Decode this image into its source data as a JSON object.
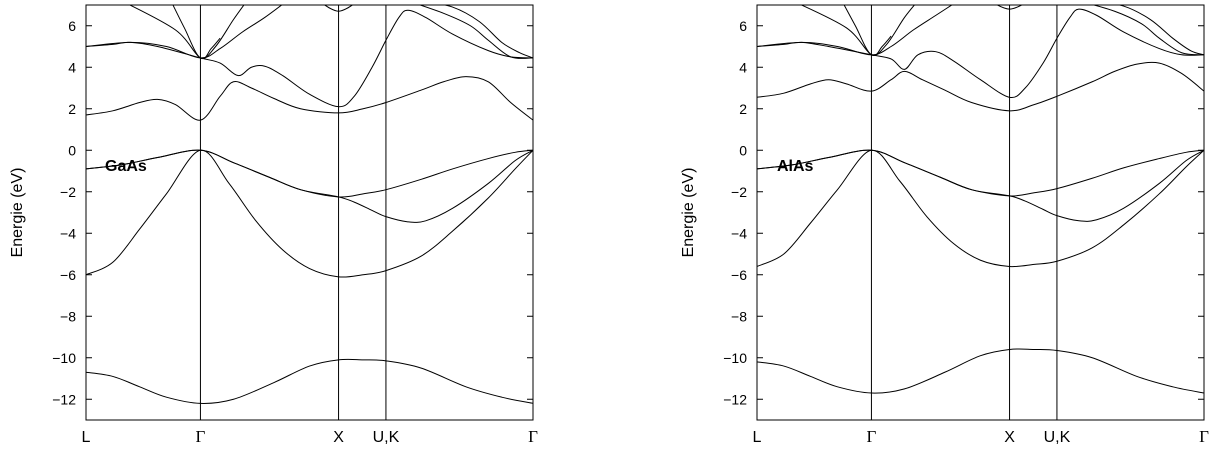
{
  "chart_data": [
    {
      "type": "line",
      "material_label": "GaAs",
      "ylabel": "Energie (eV)",
      "ylim": [
        -13,
        7
      ],
      "yticks": [
        -12,
        -10,
        -8,
        -6,
        -4,
        -2,
        0,
        2,
        4,
        6
      ],
      "xlim": [
        0,
        1
      ],
      "k_points": [
        {
          "label": "L",
          "x": 0
        },
        {
          "label": "Γ",
          "x": 0.256
        },
        {
          "label": "X",
          "x": 0.565
        },
        {
          "label": "U,K",
          "x": 0.671
        },
        {
          "label": "Γ",
          "x": 1
        }
      ],
      "bands": [
        [
          [
            0,
            -10.7
          ],
          [
            0.06,
            -10.9
          ],
          [
            0.12,
            -11.4
          ],
          [
            0.18,
            -11.9
          ],
          [
            0.256,
            -12.2
          ],
          [
            0.33,
            -12.0
          ],
          [
            0.42,
            -11.2
          ],
          [
            0.5,
            -10.4
          ],
          [
            0.565,
            -10.1
          ],
          [
            0.62,
            -10.1
          ],
          [
            0.671,
            -10.15
          ],
          [
            0.75,
            -10.5
          ],
          [
            0.85,
            -11.4
          ],
          [
            0.93,
            -11.9
          ],
          [
            1,
            -12.2
          ]
        ],
        [
          [
            0,
            -6.0
          ],
          [
            0.06,
            -5.4
          ],
          [
            0.12,
            -3.8
          ],
          [
            0.18,
            -2.1
          ],
          [
            0.256,
            0
          ],
          [
            0.32,
            -1.6
          ],
          [
            0.38,
            -3.4
          ],
          [
            0.44,
            -4.8
          ],
          [
            0.5,
            -5.7
          ],
          [
            0.565,
            -6.1
          ],
          [
            0.62,
            -6.0
          ],
          [
            0.671,
            -5.8
          ],
          [
            0.75,
            -5.1
          ],
          [
            0.82,
            -3.9
          ],
          [
            0.9,
            -2.3
          ],
          [
            0.96,
            -0.9
          ],
          [
            1,
            0
          ]
        ],
        [
          [
            0,
            -0.9
          ],
          [
            0.08,
            -0.7
          ],
          [
            0.16,
            -0.35
          ],
          [
            0.256,
            0
          ],
          [
            0.33,
            -0.6
          ],
          [
            0.41,
            -1.3
          ],
          [
            0.48,
            -1.9
          ],
          [
            0.565,
            -2.25
          ],
          [
            0.6,
            -2.5
          ],
          [
            0.64,
            -2.9
          ],
          [
            0.671,
            -3.2
          ],
          [
            0.72,
            -3.45
          ],
          [
            0.76,
            -3.4
          ],
          [
            0.82,
            -2.8
          ],
          [
            0.9,
            -1.6
          ],
          [
            0.96,
            -0.5
          ],
          [
            1,
            0
          ]
        ],
        [
          [
            0,
            -0.9
          ],
          [
            0.08,
            -0.7
          ],
          [
            0.16,
            -0.35
          ],
          [
            0.256,
            0
          ],
          [
            0.33,
            -0.6
          ],
          [
            0.41,
            -1.3
          ],
          [
            0.48,
            -1.9
          ],
          [
            0.565,
            -2.25
          ],
          [
            0.62,
            -2.1
          ],
          [
            0.671,
            -1.9
          ],
          [
            0.75,
            -1.4
          ],
          [
            0.82,
            -0.9
          ],
          [
            0.9,
            -0.4
          ],
          [
            0.96,
            -0.1
          ],
          [
            1,
            0
          ]
        ],
        [
          [
            0,
            1.7
          ],
          [
            0.06,
            1.9
          ],
          [
            0.12,
            2.3
          ],
          [
            0.16,
            2.45
          ],
          [
            0.2,
            2.2
          ],
          [
            0.256,
            1.45
          ],
          [
            0.3,
            2.6
          ],
          [
            0.33,
            3.3
          ],
          [
            0.37,
            3.0
          ],
          [
            0.42,
            2.5
          ],
          [
            0.48,
            2.0
          ],
          [
            0.565,
            1.8
          ],
          [
            0.62,
            2.0
          ],
          [
            0.671,
            2.3
          ],
          [
            0.75,
            2.9
          ],
          [
            0.8,
            3.3
          ],
          [
            0.85,
            3.55
          ],
          [
            0.9,
            3.3
          ],
          [
            0.95,
            2.3
          ],
          [
            1,
            1.45
          ]
        ],
        [
          [
            0,
            5.0
          ],
          [
            0.06,
            5.1
          ],
          [
            0.1,
            5.2
          ],
          [
            0.16,
            5.0
          ],
          [
            0.256,
            4.45
          ],
          [
            0.3,
            4.2
          ],
          [
            0.34,
            3.6
          ],
          [
            0.37,
            4.0
          ],
          [
            0.4,
            4.05
          ],
          [
            0.44,
            3.6
          ],
          [
            0.5,
            2.7
          ],
          [
            0.565,
            2.1
          ],
          [
            0.6,
            2.6
          ],
          [
            0.64,
            4.0
          ],
          [
            0.671,
            5.3
          ],
          [
            0.7,
            6.4
          ],
          [
            0.72,
            6.75
          ],
          [
            0.76,
            6.4
          ],
          [
            0.82,
            5.6
          ],
          [
            0.9,
            4.8
          ],
          [
            0.95,
            4.5
          ],
          [
            1,
            4.45
          ]
        ],
        [
          [
            0,
            5.0
          ],
          [
            0.1,
            5.2
          ],
          [
            0.18,
            5.0
          ],
          [
            0.256,
            4.45
          ],
          [
            0.3,
            4.9
          ],
          [
            0.35,
            5.7
          ],
          [
            0.4,
            6.4
          ],
          [
            0.45,
            7.2
          ]
        ],
        [
          [
            0.19,
            7.2
          ],
          [
            0.22,
            5.9
          ],
          [
            0.256,
            4.45
          ],
          [
            0.29,
            5.0
          ],
          [
            0.33,
            6.3
          ],
          [
            0.36,
            7.2
          ]
        ],
        [
          [
            0.52,
            7.2
          ],
          [
            0.565,
            6.7
          ],
          [
            0.61,
            7.2
          ]
        ],
        [
          [
            0.08,
            7.2
          ],
          [
            0.2,
            5.8
          ],
          [
            0.256,
            4.45
          ],
          [
            0.28,
            4.9
          ],
          [
            0.3,
            5.4
          ]
        ],
        [
          [
            0.72,
            7.2
          ],
          [
            0.8,
            6.6
          ],
          [
            0.86,
            6.0
          ],
          [
            0.9,
            5.3
          ],
          [
            0.95,
            4.5
          ],
          [
            1,
            4.45
          ]
        ],
        [
          [
            0.75,
            7.2
          ],
          [
            0.82,
            6.9
          ],
          [
            0.88,
            6.2
          ],
          [
            0.93,
            5.2
          ],
          [
            0.97,
            4.7
          ],
          [
            1,
            4.45
          ]
        ]
      ]
    },
    {
      "type": "line",
      "material_label": "AlAs",
      "ylabel": "Energie (eV)",
      "ylim": [
        -13,
        7
      ],
      "yticks": [
        -12,
        -10,
        -8,
        -6,
        -4,
        -2,
        0,
        2,
        4,
        6
      ],
      "xlim": [
        0,
        1
      ],
      "k_points": [
        {
          "label": "L",
          "x": 0
        },
        {
          "label": "Γ",
          "x": 0.256
        },
        {
          "label": "X",
          "x": 0.565
        },
        {
          "label": "U,K",
          "x": 0.671
        },
        {
          "label": "Γ",
          "x": 1
        }
      ],
      "bands": [
        [
          [
            0,
            -10.2
          ],
          [
            0.06,
            -10.4
          ],
          [
            0.12,
            -10.9
          ],
          [
            0.18,
            -11.4
          ],
          [
            0.256,
            -11.7
          ],
          [
            0.33,
            -11.5
          ],
          [
            0.42,
            -10.7
          ],
          [
            0.5,
            -9.9
          ],
          [
            0.565,
            -9.6
          ],
          [
            0.62,
            -9.6
          ],
          [
            0.671,
            -9.65
          ],
          [
            0.75,
            -10.0
          ],
          [
            0.85,
            -10.9
          ],
          [
            0.93,
            -11.4
          ],
          [
            1,
            -11.7
          ]
        ],
        [
          [
            0,
            -5.6
          ],
          [
            0.06,
            -5.0
          ],
          [
            0.12,
            -3.5
          ],
          [
            0.18,
            -1.9
          ],
          [
            0.256,
            0
          ],
          [
            0.32,
            -1.5
          ],
          [
            0.38,
            -3.2
          ],
          [
            0.44,
            -4.5
          ],
          [
            0.5,
            -5.3
          ],
          [
            0.565,
            -5.6
          ],
          [
            0.62,
            -5.5
          ],
          [
            0.671,
            -5.35
          ],
          [
            0.75,
            -4.7
          ],
          [
            0.82,
            -3.6
          ],
          [
            0.9,
            -2.1
          ],
          [
            0.96,
            -0.8
          ],
          [
            1,
            0
          ]
        ],
        [
          [
            0,
            -0.9
          ],
          [
            0.08,
            -0.7
          ],
          [
            0.16,
            -0.35
          ],
          [
            0.256,
            0
          ],
          [
            0.33,
            -0.6
          ],
          [
            0.41,
            -1.3
          ],
          [
            0.48,
            -1.9
          ],
          [
            0.565,
            -2.2
          ],
          [
            0.6,
            -2.45
          ],
          [
            0.64,
            -2.85
          ],
          [
            0.671,
            -3.15
          ],
          [
            0.72,
            -3.4
          ],
          [
            0.76,
            -3.35
          ],
          [
            0.82,
            -2.8
          ],
          [
            0.9,
            -1.6
          ],
          [
            0.96,
            -0.5
          ],
          [
            1,
            0
          ]
        ],
        [
          [
            0,
            -0.9
          ],
          [
            0.08,
            -0.7
          ],
          [
            0.16,
            -0.35
          ],
          [
            0.256,
            0
          ],
          [
            0.33,
            -0.6
          ],
          [
            0.41,
            -1.3
          ],
          [
            0.48,
            -1.9
          ],
          [
            0.565,
            -2.2
          ],
          [
            0.62,
            -2.05
          ],
          [
            0.671,
            -1.85
          ],
          [
            0.75,
            -1.35
          ],
          [
            0.82,
            -0.85
          ],
          [
            0.9,
            -0.4
          ],
          [
            0.96,
            -0.1
          ],
          [
            1,
            0
          ]
        ],
        [
          [
            0,
            2.55
          ],
          [
            0.06,
            2.75
          ],
          [
            0.12,
            3.2
          ],
          [
            0.16,
            3.4
          ],
          [
            0.2,
            3.2
          ],
          [
            0.256,
            2.85
          ],
          [
            0.3,
            3.4
          ],
          [
            0.33,
            3.8
          ],
          [
            0.37,
            3.4
          ],
          [
            0.42,
            2.9
          ],
          [
            0.48,
            2.3
          ],
          [
            0.565,
            1.9
          ],
          [
            0.62,
            2.2
          ],
          [
            0.671,
            2.6
          ],
          [
            0.75,
            3.3
          ],
          [
            0.8,
            3.8
          ],
          [
            0.85,
            4.15
          ],
          [
            0.9,
            4.2
          ],
          [
            0.95,
            3.7
          ],
          [
            1,
            2.85
          ]
        ],
        [
          [
            0,
            5.0
          ],
          [
            0.06,
            5.1
          ],
          [
            0.1,
            5.2
          ],
          [
            0.16,
            5.0
          ],
          [
            0.256,
            4.6
          ],
          [
            0.3,
            4.4
          ],
          [
            0.33,
            3.9
          ],
          [
            0.36,
            4.6
          ],
          [
            0.4,
            4.75
          ],
          [
            0.44,
            4.3
          ],
          [
            0.5,
            3.4
          ],
          [
            0.565,
            2.55
          ],
          [
            0.6,
            3.0
          ],
          [
            0.64,
            4.2
          ],
          [
            0.671,
            5.4
          ],
          [
            0.7,
            6.4
          ],
          [
            0.72,
            6.8
          ],
          [
            0.76,
            6.5
          ],
          [
            0.82,
            5.7
          ],
          [
            0.9,
            4.9
          ],
          [
            0.95,
            4.6
          ],
          [
            1,
            4.6
          ]
        ],
        [
          [
            0,
            5.0
          ],
          [
            0.1,
            5.2
          ],
          [
            0.18,
            5.0
          ],
          [
            0.256,
            4.6
          ],
          [
            0.3,
            5.0
          ],
          [
            0.35,
            5.8
          ],
          [
            0.4,
            6.5
          ],
          [
            0.45,
            7.2
          ]
        ],
        [
          [
            0.19,
            7.2
          ],
          [
            0.22,
            6.0
          ],
          [
            0.256,
            4.6
          ],
          [
            0.29,
            5.1
          ],
          [
            0.33,
            6.4
          ],
          [
            0.36,
            7.2
          ]
        ],
        [
          [
            0.52,
            7.2
          ],
          [
            0.565,
            6.8
          ],
          [
            0.61,
            7.2
          ]
        ],
        [
          [
            0.08,
            7.2
          ],
          [
            0.2,
            5.9
          ],
          [
            0.256,
            4.6
          ],
          [
            0.28,
            5.0
          ],
          [
            0.3,
            5.5
          ]
        ],
        [
          [
            0.72,
            7.2
          ],
          [
            0.8,
            6.7
          ],
          [
            0.86,
            6.1
          ],
          [
            0.9,
            5.4
          ],
          [
            0.95,
            4.7
          ],
          [
            1,
            4.6
          ]
        ],
        [
          [
            0.75,
            7.2
          ],
          [
            0.82,
            6.95
          ],
          [
            0.88,
            6.3
          ],
          [
            0.93,
            5.4
          ],
          [
            0.97,
            4.8
          ],
          [
            1,
            4.6
          ]
        ]
      ]
    }
  ]
}
